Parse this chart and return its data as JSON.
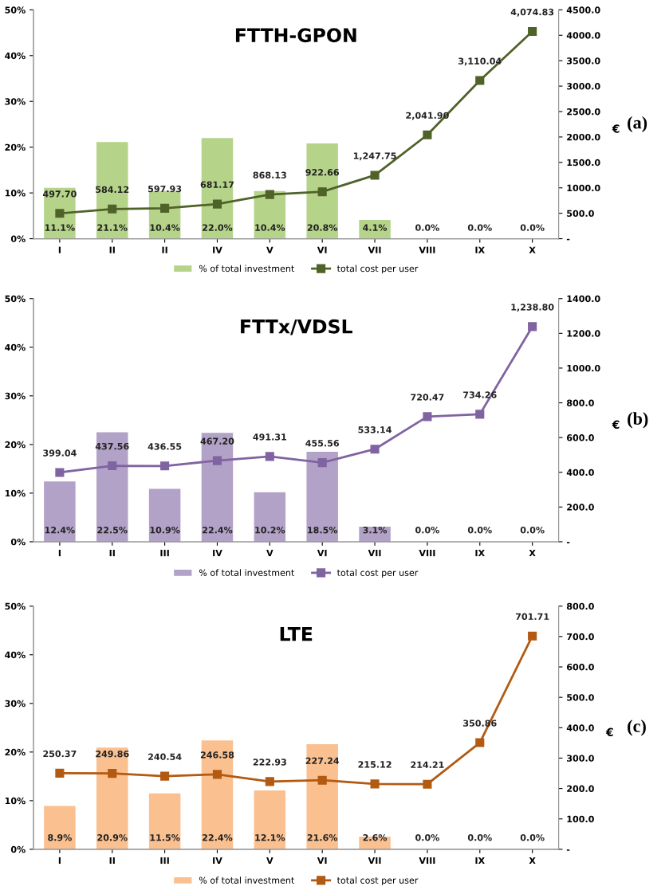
{
  "chart_data": [
    {
      "type": "bar",
      "title": "FTTH-GPON",
      "y2label": "€",
      "annotations": [
        "(a)"
      ],
      "legend": "bottom",
      "categories": [
        "I",
        "II",
        "II",
        "IV",
        "V",
        "VI",
        "VII",
        "VIII",
        "IX",
        "X"
      ],
      "ylim": [
        0,
        50
      ],
      "yticks": [
        {
          "value": 0,
          "label": "0%"
        },
        {
          "value": 10,
          "label": "10%"
        },
        {
          "value": 20,
          "label": "20%"
        },
        {
          "value": 30,
          "label": "30%"
        },
        {
          "value": 40,
          "label": "40%"
        },
        {
          "value": 50,
          "label": "50%"
        }
      ],
      "y2lim": [
        0,
        4500
      ],
      "y2ticks": [
        {
          "value": 0,
          "label": "-"
        },
        {
          "value": 500,
          "label": "500.0"
        },
        {
          "value": 1000,
          "label": "1000.0"
        },
        {
          "value": 1500,
          "label": "1500.0"
        },
        {
          "value": 2000,
          "label": "2000.0"
        },
        {
          "value": 2500,
          "label": "2500.0"
        },
        {
          "value": 3000,
          "label": "3000.0"
        },
        {
          "value": 3500,
          "label": "3500.0"
        },
        {
          "value": 4000,
          "label": "4000.0"
        },
        {
          "value": 4500,
          "label": "4500.0"
        }
      ],
      "series": [
        {
          "name": "% of total investment",
          "color": "#b5d48a",
          "values": [
            11.1,
            21.1,
            10.4,
            22.0,
            10.4,
            20.8,
            4.1,
            0,
            0,
            0
          ],
          "value_labels": [
            "11.1%",
            "21.1%",
            "10.4%",
            "22.0%",
            "10.4%",
            "20.8%",
            "4.1%",
            "0.0%",
            "0.0%",
            "0.0%"
          ]
        },
        {
          "name": "total cost per user",
          "type": "line",
          "axis": "y2",
          "marker": "square",
          "color": "#4f6228",
          "values": [
            497.7,
            584.12,
            597.93,
            681.17,
            868.13,
            922.66,
            1247.75,
            2041.9,
            3110.04,
            4074.83
          ],
          "value_labels": [
            "497.70",
            "584.12",
            "597.93",
            "681.17",
            "868.13",
            "922.66",
            "1,247.75",
            "2,041.90",
            "3,110.04",
            "4,074.83"
          ]
        }
      ]
    },
    {
      "type": "bar",
      "title": "FTTx/VDSL",
      "y2label": "€",
      "annotations": [
        "(b)"
      ],
      "legend": "bottom",
      "categories": [
        "I",
        "II",
        "III",
        "IV",
        "V",
        "VI",
        "VII",
        "VIII",
        "IX",
        "X"
      ],
      "ylim": [
        0,
        50
      ],
      "yticks": [
        {
          "value": 0,
          "label": "0%"
        },
        {
          "value": 10,
          "label": "10%"
        },
        {
          "value": 20,
          "label": "20%"
        },
        {
          "value": 30,
          "label": "30%"
        },
        {
          "value": 40,
          "label": "40%"
        },
        {
          "value": 50,
          "label": "50%"
        }
      ],
      "y2lim": [
        0,
        1400
      ],
      "y2ticks": [
        {
          "value": 0,
          "label": "-"
        },
        {
          "value": 200,
          "label": "200.0"
        },
        {
          "value": 400,
          "label": "400.0"
        },
        {
          "value": 600,
          "label": "600.0"
        },
        {
          "value": 800,
          "label": "800.0"
        },
        {
          "value": 1000,
          "label": "1000.0"
        },
        {
          "value": 1200,
          "label": "1200.0"
        },
        {
          "value": 1400,
          "label": "1400.0"
        }
      ],
      "series": [
        {
          "name": "% of total investment",
          "color": "#b3a2c7",
          "values": [
            12.4,
            22.5,
            10.9,
            22.4,
            10.2,
            18.5,
            3.1,
            0,
            0,
            0
          ],
          "value_labels": [
            "12.4%",
            "22.5%",
            "10.9%",
            "22.4%",
            "10.2%",
            "18.5%",
            "3.1%",
            "0.0%",
            "0.0%",
            "0.0%"
          ]
        },
        {
          "name": "total cost per user",
          "type": "line",
          "axis": "y2",
          "marker": "square",
          "color": "#8064a2",
          "values": [
            399.04,
            437.56,
            436.55,
            467.2,
            491.31,
            455.56,
            533.14,
            720.47,
            734.26,
            1238.8
          ],
          "value_labels": [
            "399.04",
            "437.56",
            "436.55",
            "467.20",
            "491.31",
            "455.56",
            "533.14",
            "720.47",
            "734.26",
            "1,238.80"
          ]
        }
      ]
    },
    {
      "type": "bar",
      "title": "LTE",
      "y2label": "€",
      "annotations": [
        "(c)"
      ],
      "legend": "bottom",
      "categories": [
        "I",
        "II",
        "III",
        "IV",
        "V",
        "VI",
        "VII",
        "VIII",
        "IX",
        "X"
      ],
      "ylim": [
        0,
        50
      ],
      "yticks": [
        {
          "value": 0,
          "label": "0%"
        },
        {
          "value": 10,
          "label": "10%"
        },
        {
          "value": 20,
          "label": "20%"
        },
        {
          "value": 30,
          "label": "30%"
        },
        {
          "value": 40,
          "label": "40%"
        },
        {
          "value": 50,
          "label": "50%"
        }
      ],
      "y2lim": [
        0,
        800
      ],
      "y2ticks": [
        {
          "value": 0,
          "label": "-"
        },
        {
          "value": 100,
          "label": "100.0"
        },
        {
          "value": 200,
          "label": "200.0"
        },
        {
          "value": 300,
          "label": "300.0"
        },
        {
          "value": 400,
          "label": "400.0"
        },
        {
          "value": 500,
          "label": "500.0"
        },
        {
          "value": 600,
          "label": "600.0"
        },
        {
          "value": 700,
          "label": "700.0"
        },
        {
          "value": 800,
          "label": "800.0"
        }
      ],
      "series": [
        {
          "name": "% of total investment",
          "color": "#fac090",
          "values": [
            8.9,
            20.9,
            11.5,
            22.4,
            12.1,
            21.6,
            2.6,
            0,
            0,
            0
          ],
          "value_labels": [
            "8.9%",
            "20.9%",
            "11.5%",
            "22.4%",
            "12.1%",
            "21.6%",
            "2.6%",
            "0.0%",
            "0.0%",
            "0.0%"
          ]
        },
        {
          "name": "total cost per user",
          "type": "line",
          "axis": "y2",
          "marker": "square",
          "color": "#b35a12",
          "values": [
            250.37,
            249.86,
            240.54,
            246.58,
            222.93,
            227.24,
            215.12,
            214.21,
            350.86,
            701.71
          ],
          "value_labels": [
            "250.37",
            "249.86",
            "240.54",
            "246.58",
            "222.93",
            "227.24",
            "215.12",
            "214.21",
            "350.86",
            "701.71"
          ]
        }
      ]
    }
  ]
}
